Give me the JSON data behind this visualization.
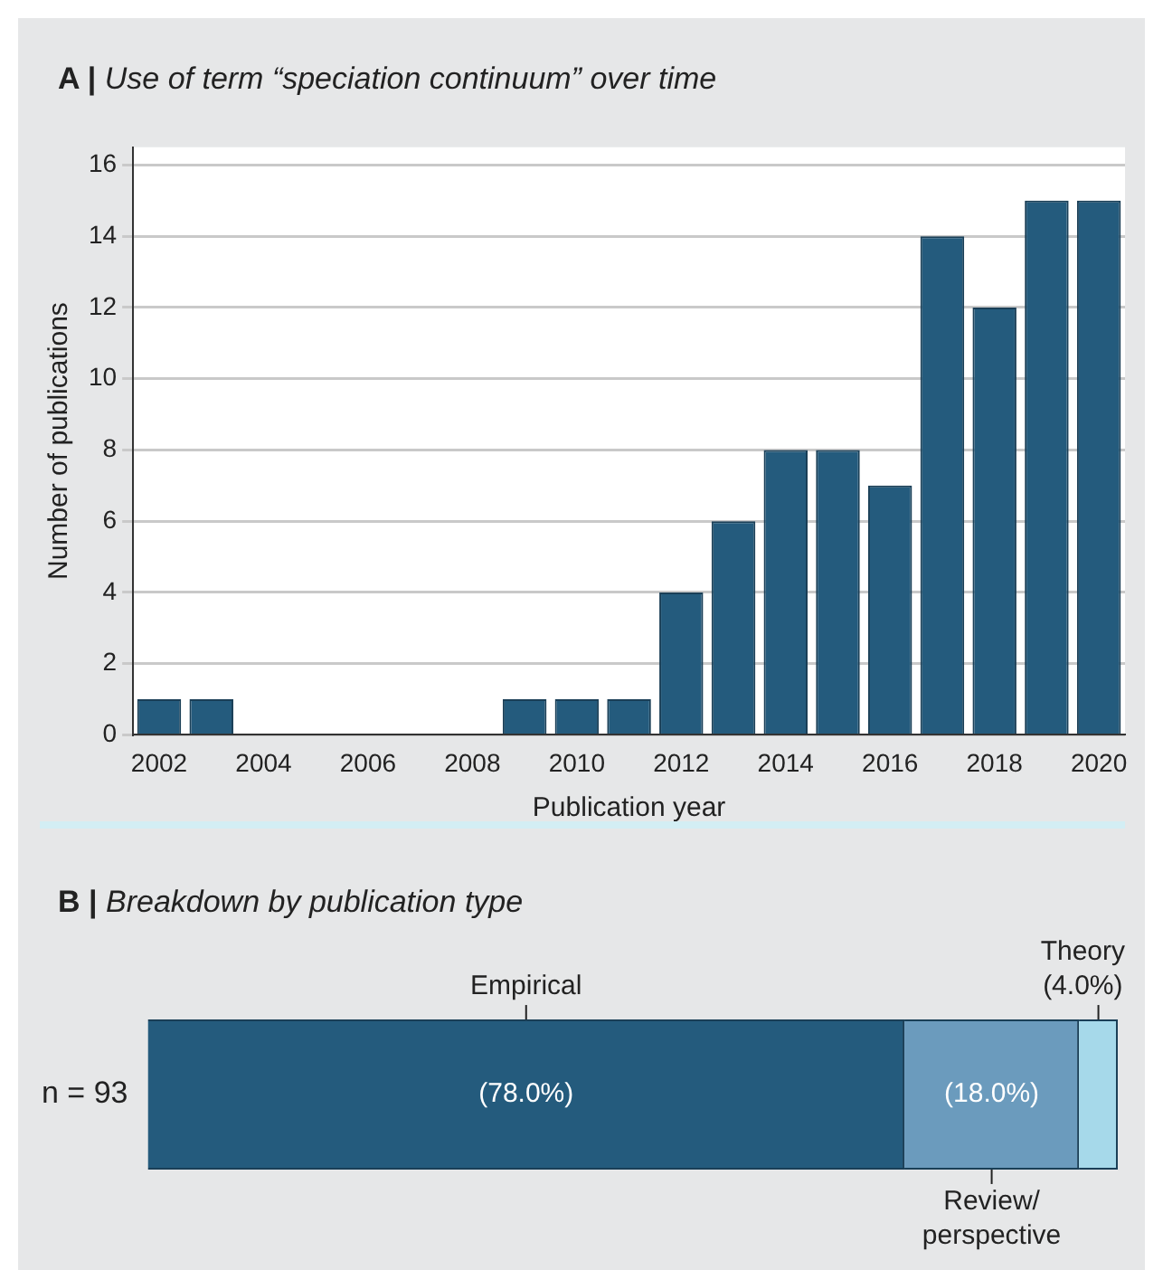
{
  "chart_data": [
    {
      "type": "bar",
      "title": "A | Use of term “speciation continuum” over time",
      "xlabel": "Publication year",
      "ylabel": "Number of publications",
      "categories": [
        "2002",
        null,
        "2004",
        null,
        "2006",
        null,
        "2008",
        null,
        "2010",
        null,
        "2012",
        null,
        "2014",
        null,
        "2016",
        null,
        "2018",
        null,
        "2020"
      ],
      "values": [
        1,
        1,
        0,
        0,
        0,
        0,
        0,
        1,
        1,
        1,
        4,
        6,
        8,
        8,
        7,
        14,
        12,
        15,
        15
      ],
      "color": "#245b7d",
      "ylim": [
        0,
        16.5
      ],
      "yticks": [
        0,
        2,
        4,
        6,
        8,
        10,
        12,
        14,
        16
      ],
      "grid": "y",
      "legend": false
    },
    {
      "type": "bar",
      "title": "B | Breakdown by publication type",
      "orientation": "horizontal",
      "stacked": true,
      "categories": [
        "n = 93"
      ],
      "xlim": [
        0,
        100
      ],
      "tick_labels": "y",
      "legend": false,
      "series": [
        {
          "name": "Empirical",
          "color": "#245b7d",
          "values": [
            78.0
          ],
          "value_labels": [
            "(78.0%)"
          ]
        },
        {
          "name": "Review/perspective",
          "color": "#6b9bbd",
          "values": [
            18.0
          ],
          "value_labels": [
            "(18.0%)"
          ]
        },
        {
          "name": "Theory",
          "color": "#a6d9ea",
          "values": [
            4.0
          ],
          "value_labels": [
            "(4.0%)"
          ]
        }
      ]
    }
  ]
}
